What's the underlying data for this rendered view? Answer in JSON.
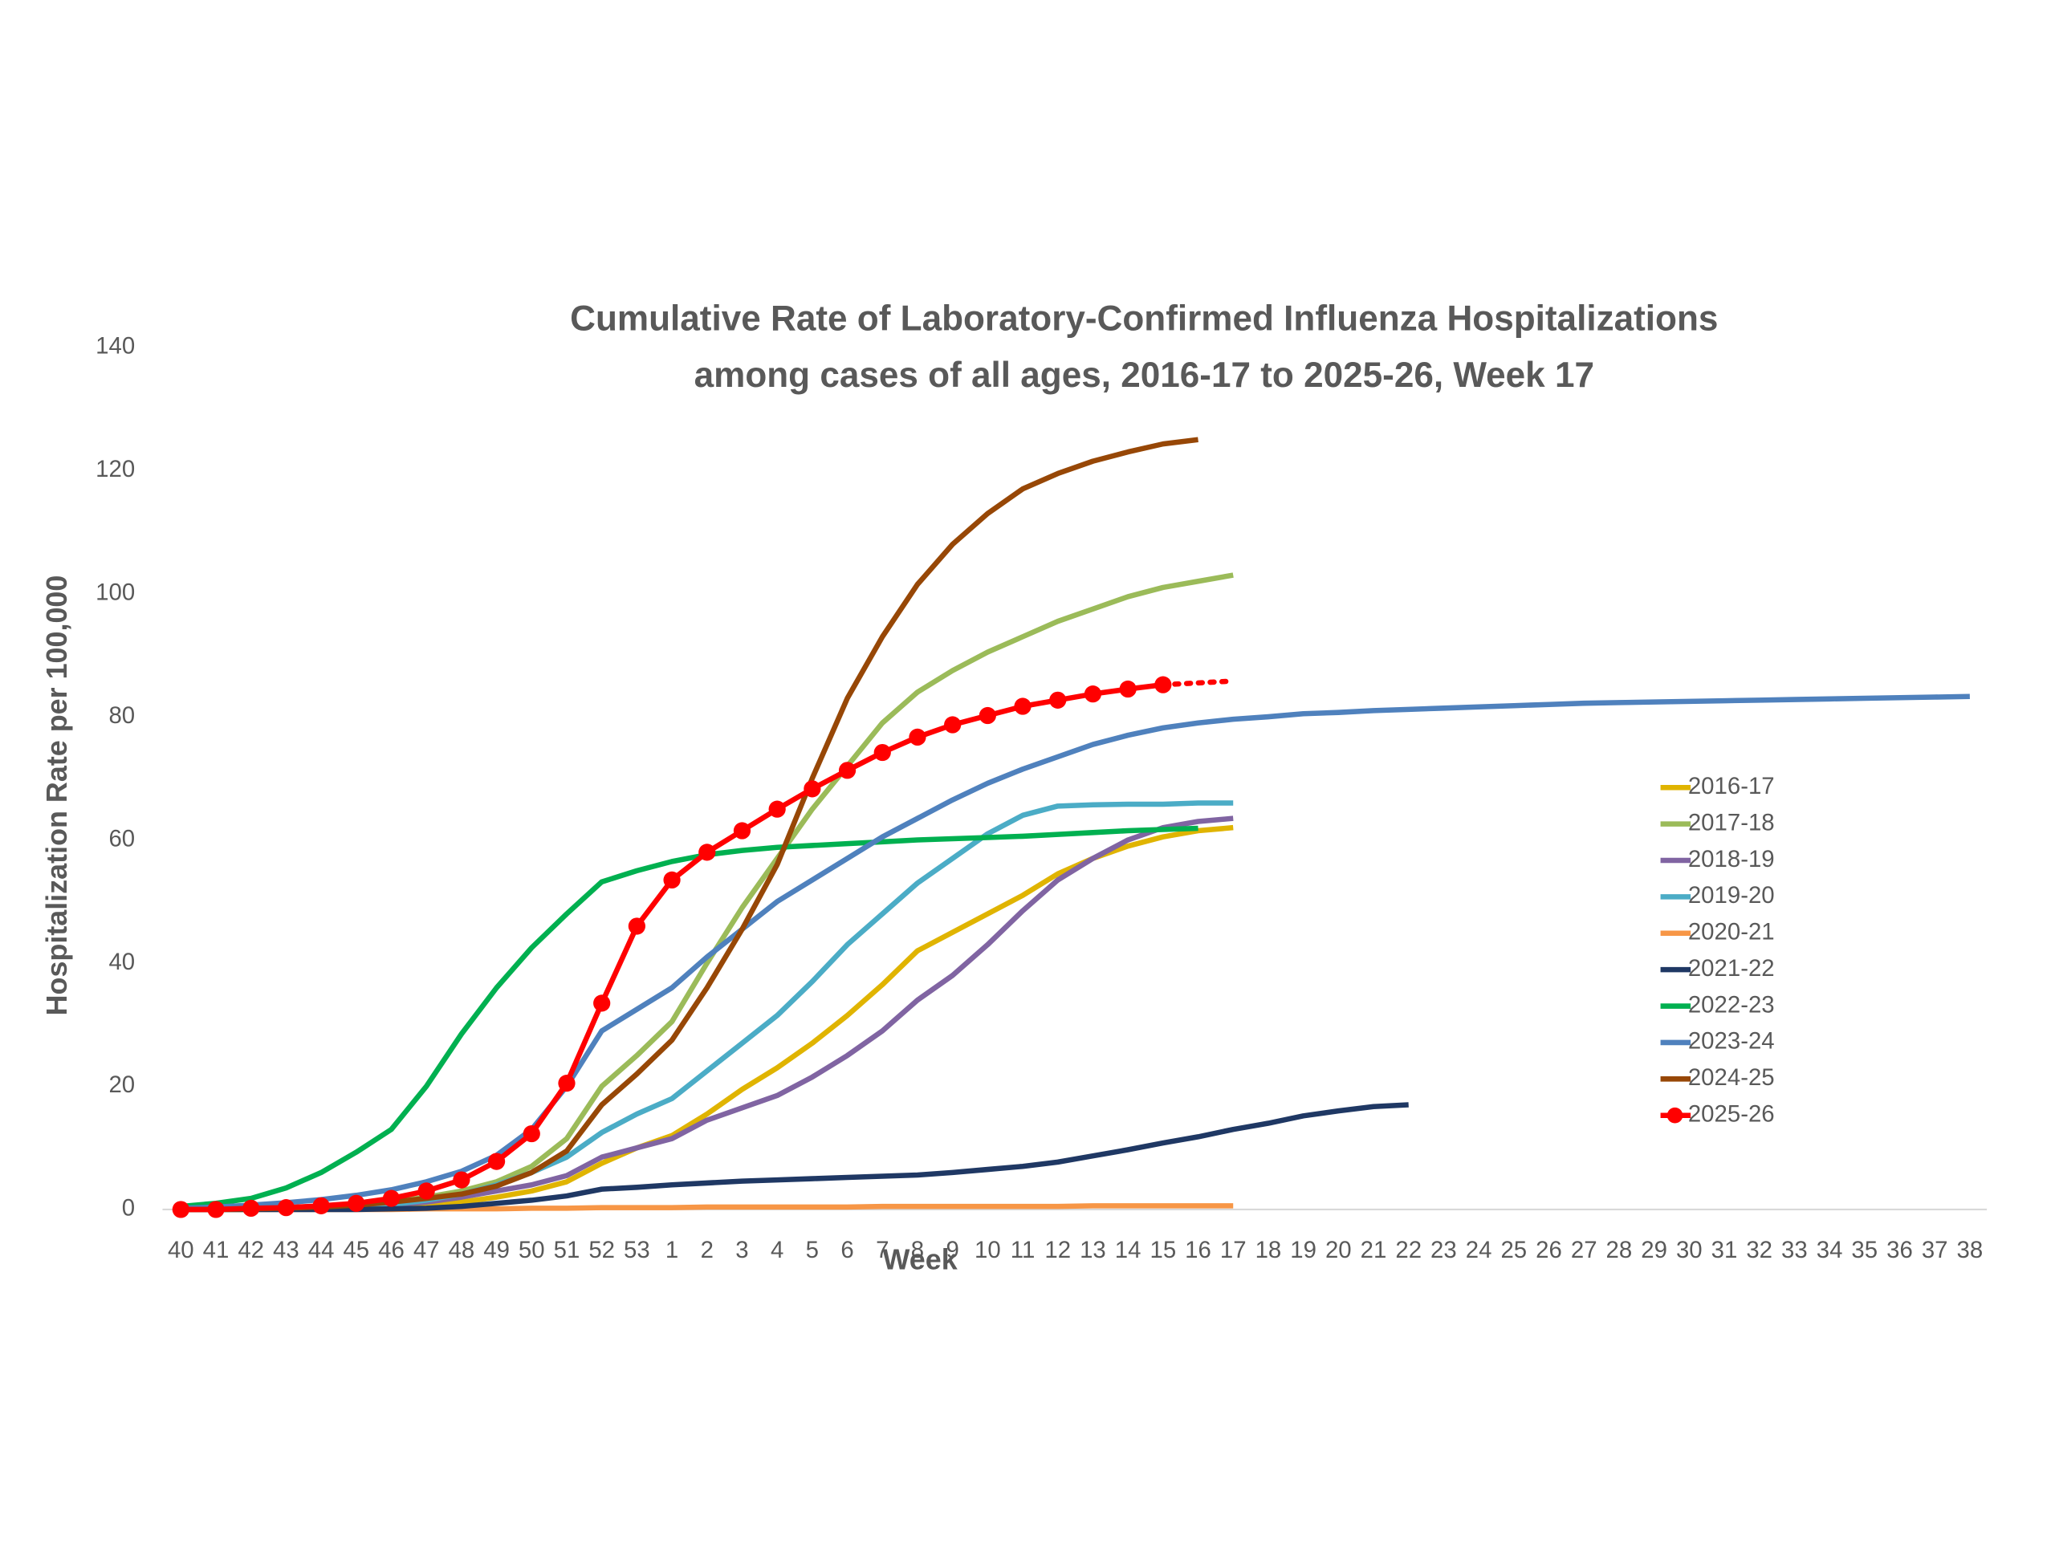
{
  "chart_data": {
    "type": "line",
    "title_lines": [
      "Cumulative Rate of Laboratory-Confirmed Influenza Hospitalizations",
      "among cases of all ages, 2016-17 to 2025-26, Week 17"
    ],
    "x_label": "Week",
    "y_label": "Hospitalization Rate per 100,000",
    "categories": [
      "40",
      "41",
      "42",
      "43",
      "44",
      "45",
      "46",
      "47",
      "48",
      "49",
      "50",
      "51",
      "52",
      "53",
      "1",
      "2",
      "3",
      "4",
      "5",
      "6",
      "7",
      "8",
      "9",
      "10",
      "11",
      "12",
      "13",
      "14",
      "15",
      "16",
      "17",
      "18",
      "19",
      "20",
      "21",
      "22",
      "23",
      "24",
      "25",
      "26",
      "27",
      "28",
      "29",
      "30",
      "31",
      "32",
      "33",
      "34",
      "35",
      "36",
      "37",
      "38"
    ],
    "ylim": [
      0,
      140
    ],
    "yticks": [
      0,
      20,
      40,
      60,
      80,
      100,
      120,
      140
    ],
    "grid": false,
    "legend_position": "right",
    "series": [
      {
        "name": "2016-17",
        "color": "#e0b400",
        "values": [
          0,
          0,
          0,
          0.1,
          0.2,
          0.3,
          0.5,
          0.8,
          1.2,
          2,
          3,
          4.5,
          7.5,
          10,
          12,
          15.5,
          19.5,
          23,
          27,
          31.5,
          36.5,
          42,
          45,
          48,
          51,
          54.5,
          57,
          59,
          60.5,
          61.5,
          62,
          null,
          null,
          null,
          null,
          null,
          null,
          null,
          null,
          null,
          null,
          null,
          null,
          null,
          null,
          null,
          null,
          null,
          null,
          null,
          null,
          null
        ]
      },
      {
        "name": "2017-18",
        "color": "#9bbb59",
        "values": [
          0,
          0.1,
          0.2,
          0.3,
          0.5,
          0.8,
          1.2,
          2,
          3,
          4.5,
          7,
          11.5,
          20,
          25,
          30.5,
          40,
          49,
          57,
          65,
          72,
          79,
          84,
          87.5,
          90.5,
          93,
          95.5,
          97.5,
          99.5,
          101,
          102,
          103,
          null,
          null,
          null,
          null,
          null,
          null,
          null,
          null,
          null,
          null,
          null,
          null,
          null,
          null,
          null,
          null,
          null,
          null,
          null,
          null,
          null
        ]
      },
      {
        "name": "2018-19",
        "color": "#8064a2",
        "values": [
          0,
          0,
          0.1,
          0.2,
          0.3,
          0.5,
          0.8,
          1.2,
          2,
          3,
          4,
          5.5,
          8.5,
          10,
          11.5,
          14.5,
          16.5,
          18.5,
          21.5,
          25,
          29,
          34,
          38,
          43,
          48.5,
          53.5,
          57,
          60,
          62,
          63,
          63.5,
          null,
          null,
          null,
          null,
          null,
          null,
          null,
          null,
          null,
          null,
          null,
          null,
          null,
          null,
          null,
          null,
          null,
          null,
          null,
          null,
          null
        ]
      },
      {
        "name": "2019-20",
        "color": "#4bacc6",
        "values": [
          0,
          0,
          0.1,
          0.2,
          0.3,
          0.5,
          0.8,
          1.5,
          2.5,
          4,
          6,
          8.5,
          12.5,
          15.5,
          18,
          22.5,
          27,
          31.5,
          37,
          43,
          48,
          53,
          57,
          61,
          64,
          65.5,
          65.7,
          65.8,
          65.8,
          66,
          66,
          null,
          null,
          null,
          null,
          null,
          null,
          null,
          null,
          null,
          null,
          null,
          null,
          null,
          null,
          null,
          null,
          null,
          null,
          null,
          null,
          null
        ]
      },
      {
        "name": "2020-21",
        "color": "#f79646",
        "values": [
          0,
          0,
          0,
          0,
          0,
          0,
          0,
          0.1,
          0.1,
          0.1,
          0.2,
          0.2,
          0.3,
          0.3,
          0.3,
          0.4,
          0.4,
          0.4,
          0.4,
          0.4,
          0.5,
          0.5,
          0.5,
          0.5,
          0.5,
          0.5,
          0.6,
          0.6,
          0.6,
          0.6,
          0.6,
          null,
          null,
          null,
          null,
          null,
          null,
          null,
          null,
          null,
          null,
          null,
          null,
          null,
          null,
          null,
          null,
          null,
          null,
          null,
          null,
          null
        ]
      },
      {
        "name": "2021-22",
        "color": "#1f3864",
        "values": [
          0,
          0,
          0,
          0,
          0,
          0,
          0.1,
          0.2,
          0.5,
          1,
          1.5,
          2.2,
          3.3,
          3.6,
          4,
          4.3,
          4.6,
          4.8,
          5,
          5.2,
          5.4,
          5.6,
          6,
          6.5,
          7,
          7.7,
          8.7,
          9.7,
          10.8,
          11.8,
          13,
          14,
          15.2,
          16,
          16.7,
          17,
          null,
          null,
          null,
          null,
          null,
          null,
          null,
          null,
          null,
          null,
          null,
          null,
          null,
          null,
          null,
          null
        ]
      },
      {
        "name": "2022-23",
        "color": "#00b050",
        "values": [
          0.5,
          1,
          1.8,
          3.5,
          6,
          9.3,
          13,
          20,
          28.5,
          36,
          42.5,
          48,
          53.2,
          55,
          56.5,
          57.6,
          58.3,
          58.8,
          59.1,
          59.4,
          59.7,
          60,
          60.2,
          60.4,
          60.6,
          60.9,
          61.2,
          61.5,
          61.7,
          61.9,
          null,
          null,
          null,
          null,
          null,
          null,
          null,
          null,
          null,
          null,
          null,
          null,
          null,
          null,
          null,
          null,
          null,
          null,
          null,
          null,
          null,
          null
        ]
      },
      {
        "name": "2023-24",
        "color": "#4f81bd",
        "values": [
          0.2,
          0.4,
          0.7,
          1.1,
          1.6,
          2.3,
          3.2,
          4.5,
          6.2,
          8.8,
          13,
          20,
          29,
          32.5,
          36,
          41,
          45.5,
          50,
          53.5,
          57,
          60.5,
          63.5,
          66.5,
          69.2,
          71.5,
          73.5,
          75.5,
          77,
          78.2,
          79,
          79.6,
          80,
          80.5,
          80.7,
          81,
          81.2,
          81.4,
          81.6,
          81.8,
          82,
          82.2,
          82.3,
          82.4,
          82.5,
          82.6,
          82.7,
          82.8,
          82.9,
          83,
          83.1,
          83.2,
          83.3
        ]
      },
      {
        "name": "2024-25",
        "color": "#974706",
        "values": [
          0,
          0,
          0.1,
          0.2,
          0.4,
          0.7,
          1.2,
          1.8,
          2.5,
          3.8,
          6,
          9.5,
          17,
          22,
          27.5,
          36,
          45.5,
          56,
          70,
          83,
          93,
          101.5,
          108,
          113,
          117,
          119.5,
          121.5,
          123,
          124.3,
          125,
          null,
          null,
          null,
          null,
          null,
          null,
          null,
          null,
          null,
          null,
          null,
          null,
          null,
          null,
          null,
          null,
          null,
          null,
          null,
          null,
          null,
          null
        ]
      },
      {
        "name": "2025-26",
        "color": "#ff0000",
        "markers": true,
        "values": [
          0,
          0,
          0.2,
          0.3,
          0.6,
          1,
          1.8,
          3,
          4.8,
          7.8,
          12.3,
          20.5,
          33.5,
          46,
          53.5,
          58,
          61.5,
          65,
          68.3,
          71.3,
          74.2,
          76.7,
          78.7,
          80.2,
          81.7,
          82.7,
          83.7,
          84.5,
          85.2,
          null,
          null,
          null,
          null,
          null,
          null,
          null,
          null,
          null,
          null,
          null,
          null,
          null,
          null,
          null,
          null,
          null,
          null,
          null,
          null,
          null,
          null,
          null
        ],
        "dotted_values": [
          null,
          null,
          null,
          null,
          null,
          null,
          null,
          null,
          null,
          null,
          null,
          null,
          null,
          null,
          null,
          null,
          null,
          null,
          null,
          null,
          null,
          null,
          null,
          null,
          null,
          null,
          null,
          null,
          85.2,
          85.5,
          85.8,
          null,
          null,
          null,
          null,
          null,
          null,
          null,
          null,
          null,
          null,
          null,
          null,
          null,
          null,
          null,
          null,
          null,
          null,
          null,
          null,
          null
        ]
      }
    ]
  }
}
